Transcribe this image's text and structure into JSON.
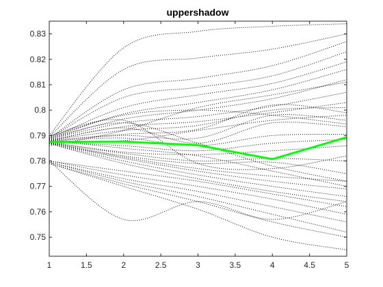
{
  "chart_data": {
    "type": "line",
    "title": "uppershadow",
    "xlabel": "",
    "ylabel": "",
    "xlim": [
      1,
      5
    ],
    "ylim": [
      0.7425,
      0.835
    ],
    "x_ticks": [
      1,
      1.5,
      2,
      2.5,
      3,
      3.5,
      4,
      4.5,
      5
    ],
    "x_tick_labels": [
      "1",
      "1.5",
      "2",
      "2.5",
      "3",
      "3.5",
      "4",
      "4.5",
      "5"
    ],
    "y_ticks": [
      0.75,
      0.76,
      0.77,
      0.78,
      0.79,
      0.8,
      0.81,
      0.82,
      0.83
    ],
    "y_tick_labels": [
      "0.75",
      "0.76",
      "0.77",
      "0.78",
      "0.79",
      "0.8",
      "0.81",
      "0.82",
      "0.83"
    ],
    "grid": false,
    "legend": "none",
    "x": [
      1,
      2,
      3,
      4,
      5
    ],
    "series": [
      {
        "values": [
          0.7875,
          0.7876,
          0.7862,
          0.7807,
          0.7893
        ],
        "color": "#00ff00",
        "style": "solid"
      },
      {
        "values": [
          0.79,
          0.8245,
          0.831,
          0.833,
          0.834
        ],
        "color": "#000000",
        "style": "dotted"
      },
      {
        "values": [
          0.7895,
          0.816,
          0.8205,
          0.824,
          0.83
        ],
        "color": "#000000",
        "style": "dotted"
      },
      {
        "values": [
          0.789,
          0.808,
          0.8125,
          0.8175,
          0.827
        ],
        "color": "#000000",
        "style": "dotted"
      },
      {
        "values": [
          0.789,
          0.805,
          0.809,
          0.8135,
          0.823
        ],
        "color": "#000000",
        "style": "dotted"
      },
      {
        "values": [
          0.7888,
          0.801,
          0.806,
          0.8105,
          0.819
        ],
        "color": "#000000",
        "style": "dotted"
      },
      {
        "values": [
          0.7888,
          0.7985,
          0.803,
          0.808,
          0.816
        ],
        "color": "#000000",
        "style": "dotted"
      },
      {
        "values": [
          0.7885,
          0.7965,
          0.8,
          0.8045,
          0.812
        ],
        "color": "#000000",
        "style": "dotted"
      },
      {
        "values": [
          0.7885,
          0.795,
          0.7975,
          0.8015,
          0.807
        ],
        "color": "#000000",
        "style": "dotted"
      },
      {
        "values": [
          0.7882,
          0.7935,
          0.7955,
          0.799,
          0.803
        ],
        "color": "#000000",
        "style": "dotted"
      },
      {
        "values": [
          0.7882,
          0.792,
          0.794,
          0.8,
          0.801
        ],
        "color": "#000000",
        "style": "dotted"
      },
      {
        "values": [
          0.788,
          0.7905,
          0.7925,
          0.802,
          0.799
        ],
        "color": "#000000",
        "style": "dotted"
      },
      {
        "values": [
          0.788,
          0.79,
          0.789,
          0.798,
          0.796
        ],
        "color": "#000000",
        "style": "dotted"
      },
      {
        "values": [
          0.7878,
          0.793,
          0.787,
          0.795,
          0.7935
        ],
        "color": "#000000",
        "style": "dotted"
      },
      {
        "values": [
          0.7878,
          0.789,
          0.786,
          0.79,
          0.7905
        ],
        "color": "#000000",
        "style": "dotted"
      },
      {
        "values": [
          0.7875,
          0.786,
          0.784,
          0.787,
          0.7885
        ],
        "color": "#000000",
        "style": "dotted"
      },
      {
        "values": [
          0.7875,
          0.7835,
          0.7825,
          0.784,
          0.786
        ],
        "color": "#000000",
        "style": "dotted"
      },
      {
        "values": [
          0.7872,
          0.783,
          0.78,
          0.781,
          0.78
        ],
        "color": "#000000",
        "style": "dotted"
      },
      {
        "values": [
          0.7872,
          0.782,
          0.779,
          0.7795,
          0.775
        ],
        "color": "#000000",
        "style": "dotted"
      },
      {
        "values": [
          0.787,
          0.7815,
          0.777,
          0.774,
          0.772
        ],
        "color": "#000000",
        "style": "dotted"
      },
      {
        "values": [
          0.787,
          0.781,
          0.776,
          0.772,
          0.769
        ],
        "color": "#000000",
        "style": "dotted"
      },
      {
        "values": [
          0.7868,
          0.78,
          0.7745,
          0.77,
          0.766
        ],
        "color": "#000000",
        "style": "dotted"
      },
      {
        "values": [
          0.7868,
          0.779,
          0.773,
          0.768,
          0.764
        ],
        "color": "#000000",
        "style": "dotted"
      },
      {
        "values": [
          0.78,
          0.776,
          0.772,
          0.767,
          0.762
        ],
        "color": "#000000",
        "style": "dotted"
      },
      {
        "values": [
          0.78,
          0.7745,
          0.77,
          0.765,
          0.759
        ],
        "color": "#000000",
        "style": "dotted"
      },
      {
        "values": [
          0.7795,
          0.773,
          0.768,
          0.762,
          0.756
        ],
        "color": "#000000",
        "style": "dotted"
      },
      {
        "values": [
          0.7795,
          0.772,
          0.766,
          0.759,
          0.752
        ],
        "color": "#000000",
        "style": "dotted"
      },
      {
        "values": [
          0.779,
          0.771,
          0.764,
          0.756,
          0.75
        ],
        "color": "#000000",
        "style": "dotted"
      },
      {
        "values": [
          0.779,
          0.77,
          0.761,
          0.75,
          0.745
        ],
        "color": "#000000",
        "style": "dotted"
      },
      {
        "values": [
          0.78,
          0.757,
          0.764,
          0.757,
          0.764
        ],
        "color": "#000000",
        "style": "dotted"
      },
      {
        "values": [
          0.789,
          0.795,
          0.787,
          0.778,
          0.772
        ],
        "color": "#000000",
        "style": "dotted"
      },
      {
        "values": [
          0.786,
          0.792,
          0.801,
          0.806,
          0.811
        ],
        "color": "#000000",
        "style": "dotted"
      },
      {
        "values": [
          0.79,
          0.796,
          0.779,
          0.777,
          0.782
        ],
        "color": "#000000",
        "style": "dotted"
      },
      {
        "values": [
          0.7895,
          0.798,
          0.8,
          0.798,
          0.7945
        ],
        "color": "#000000",
        "style": "dotted"
      },
      {
        "values": [
          0.788,
          0.785,
          0.782,
          0.776,
          0.77
        ],
        "color": "#000000",
        "style": "dotted"
      },
      {
        "values": [
          0.7875,
          0.788,
          0.792,
          0.796,
          0.798
        ],
        "color": "#000000",
        "style": "dotted"
      }
    ]
  }
}
